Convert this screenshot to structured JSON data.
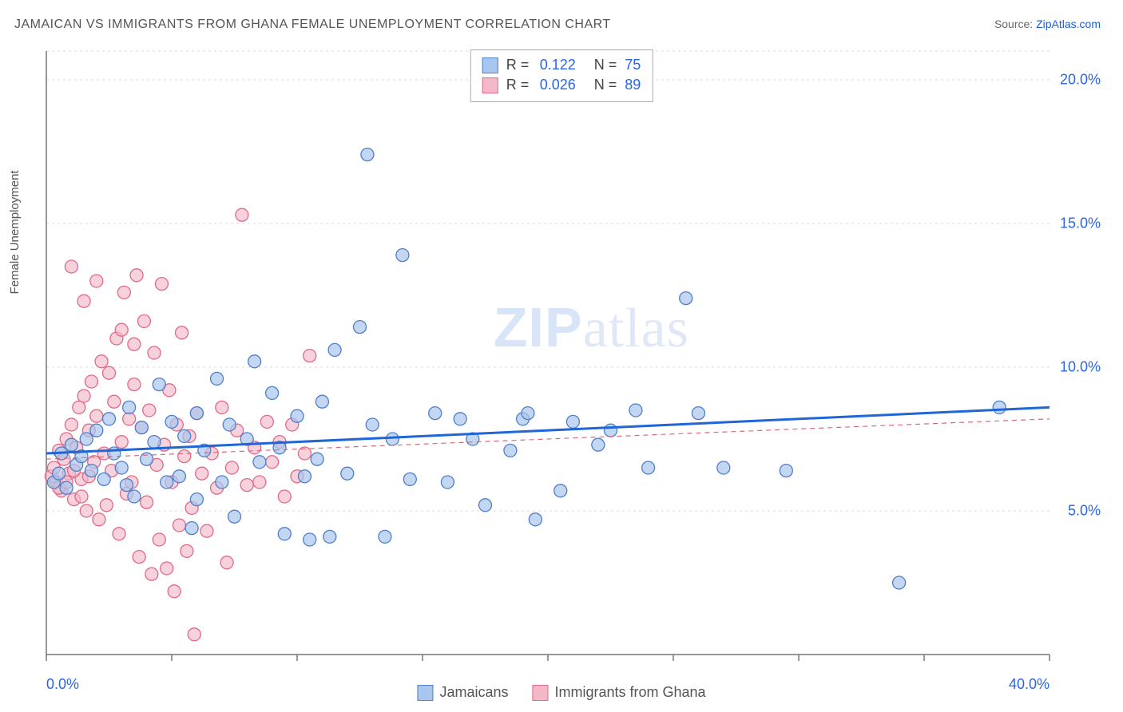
{
  "title": "JAMAICAN VS IMMIGRANTS FROM GHANA FEMALE UNEMPLOYMENT CORRELATION CHART",
  "source": {
    "label": "Source: ",
    "site": "ZipAtlas.com"
  },
  "ylabel": "Female Unemployment",
  "watermark": {
    "zip": "ZIP",
    "atlas": "atlas"
  },
  "chart": {
    "type": "scatter",
    "background_color": "#ffffff",
    "grid_color": "#d9d9d9",
    "axis_color": "#777777",
    "xlim": [
      0,
      40
    ],
    "ylim": [
      0,
      21
    ],
    "xticks": [
      0,
      10,
      20,
      30,
      40
    ],
    "xtick_labels": [
      "0.0%",
      "",
      "",
      "",
      "40.0%"
    ],
    "yticks": [
      5,
      10,
      15,
      20
    ],
    "ytick_labels": [
      "5.0%",
      "10.0%",
      "15.0%",
      "20.0%"
    ],
    "xtick_marks": [
      0,
      5,
      10,
      15,
      20,
      25,
      30,
      35,
      40
    ],
    "marker_radius": 8,
    "marker_stroke_width": 1.3,
    "series": [
      {
        "name": "Jamaicans",
        "fill": "#a9c6ee",
        "stroke": "#4f7fc9",
        "fill_opacity": 0.7,
        "trend": {
          "y0": 7.0,
          "y1": 8.6,
          "color": "#1f66d6",
          "width": 3,
          "dash": "none"
        },
        "R": "0.122",
        "N": "75",
        "points": [
          [
            0.3,
            6.0
          ],
          [
            0.5,
            6.3
          ],
          [
            0.6,
            7.0
          ],
          [
            0.8,
            5.8
          ],
          [
            1.0,
            7.3
          ],
          [
            1.2,
            6.6
          ],
          [
            1.4,
            6.9
          ],
          [
            1.6,
            7.5
          ],
          [
            1.8,
            6.4
          ],
          [
            2.0,
            7.8
          ],
          [
            2.3,
            6.1
          ],
          [
            2.5,
            8.2
          ],
          [
            2.7,
            7.0
          ],
          [
            3.0,
            6.5
          ],
          [
            3.3,
            8.6
          ],
          [
            3.5,
            5.5
          ],
          [
            3.8,
            7.9
          ],
          [
            4.0,
            6.8
          ],
          [
            4.3,
            7.4
          ],
          [
            4.5,
            9.4
          ],
          [
            5.0,
            8.1
          ],
          [
            5.3,
            6.2
          ],
          [
            5.5,
            7.6
          ],
          [
            5.8,
            4.4
          ],
          [
            6.0,
            8.4
          ],
          [
            6.3,
            7.1
          ],
          [
            6.8,
            9.6
          ],
          [
            7.0,
            6.0
          ],
          [
            7.3,
            8.0
          ],
          [
            7.5,
            4.8
          ],
          [
            8.0,
            7.5
          ],
          [
            8.3,
            10.2
          ],
          [
            8.5,
            6.7
          ],
          [
            9.0,
            9.1
          ],
          [
            9.3,
            7.2
          ],
          [
            9.5,
            4.2
          ],
          [
            10.0,
            8.3
          ],
          [
            10.3,
            6.2
          ],
          [
            10.5,
            4.0
          ],
          [
            11.0,
            8.8
          ],
          [
            11.3,
            4.1
          ],
          [
            11.5,
            10.6
          ],
          [
            12.0,
            6.3
          ],
          [
            12.5,
            11.4
          ],
          [
            12.8,
            17.4
          ],
          [
            13.0,
            8.0
          ],
          [
            13.5,
            4.1
          ],
          [
            13.8,
            7.5
          ],
          [
            14.2,
            13.9
          ],
          [
            14.5,
            6.1
          ],
          [
            15.5,
            8.4
          ],
          [
            16.0,
            6.0
          ],
          [
            16.5,
            8.2
          ],
          [
            17.0,
            7.5
          ],
          [
            17.5,
            5.2
          ],
          [
            18.5,
            7.1
          ],
          [
            19.0,
            8.2
          ],
          [
            19.2,
            8.4
          ],
          [
            19.5,
            4.7
          ],
          [
            20.5,
            5.7
          ],
          [
            21.0,
            8.1
          ],
          [
            22.0,
            7.3
          ],
          [
            22.5,
            7.8
          ],
          [
            23.5,
            8.5
          ],
          [
            24.0,
            6.5
          ],
          [
            25.5,
            12.4
          ],
          [
            26.0,
            8.4
          ],
          [
            27.0,
            6.5
          ],
          [
            29.5,
            6.4
          ],
          [
            34.0,
            2.5
          ],
          [
            38.0,
            8.6
          ],
          [
            10.8,
            6.8
          ],
          [
            6.0,
            5.4
          ],
          [
            4.8,
            6.0
          ],
          [
            3.2,
            5.9
          ]
        ]
      },
      {
        "name": "Immigrants from Ghana",
        "fill": "#f3b9c9",
        "stroke": "#e06a88",
        "fill_opacity": 0.65,
        "trend": {
          "y0": 6.8,
          "y1": 8.2,
          "color": "#d66a7d",
          "width": 1.2,
          "dash": "6,5"
        },
        "R": "0.026",
        "N": "89",
        "points": [
          [
            0.2,
            6.2
          ],
          [
            0.3,
            6.5
          ],
          [
            0.4,
            6.0
          ],
          [
            0.5,
            7.1
          ],
          [
            0.6,
            5.7
          ],
          [
            0.7,
            6.8
          ],
          [
            0.8,
            7.5
          ],
          [
            0.9,
            6.3
          ],
          [
            1.0,
            8.0
          ],
          [
            1.1,
            5.4
          ],
          [
            1.2,
            7.2
          ],
          [
            1.3,
            8.6
          ],
          [
            1.4,
            6.1
          ],
          [
            1.5,
            9.0
          ],
          [
            1.6,
            5.0
          ],
          [
            1.7,
            7.8
          ],
          [
            1.8,
            9.5
          ],
          [
            1.9,
            6.7
          ],
          [
            2.0,
            8.3
          ],
          [
            2.1,
            4.7
          ],
          [
            2.2,
            10.2
          ],
          [
            2.3,
            7.0
          ],
          [
            2.4,
            5.2
          ],
          [
            2.5,
            9.8
          ],
          [
            2.6,
            6.4
          ],
          [
            2.7,
            8.8
          ],
          [
            2.8,
            11.0
          ],
          [
            2.9,
            4.2
          ],
          [
            3.0,
            7.4
          ],
          [
            3.1,
            12.6
          ],
          [
            3.2,
            5.6
          ],
          [
            3.3,
            8.2
          ],
          [
            3.4,
            6.0
          ],
          [
            3.5,
            9.4
          ],
          [
            3.6,
            13.2
          ],
          [
            3.7,
            3.4
          ],
          [
            3.8,
            7.9
          ],
          [
            3.9,
            11.6
          ],
          [
            4.0,
            5.3
          ],
          [
            4.1,
            8.5
          ],
          [
            4.2,
            2.8
          ],
          [
            4.3,
            10.5
          ],
          [
            4.4,
            6.6
          ],
          [
            4.5,
            4.0
          ],
          [
            4.6,
            12.9
          ],
          [
            4.7,
            7.3
          ],
          [
            4.8,
            3.0
          ],
          [
            4.9,
            9.2
          ],
          [
            5.0,
            6.0
          ],
          [
            5.1,
            2.2
          ],
          [
            5.2,
            8.0
          ],
          [
            5.3,
            4.5
          ],
          [
            5.4,
            11.2
          ],
          [
            5.5,
            6.9
          ],
          [
            5.6,
            3.6
          ],
          [
            5.7,
            7.6
          ],
          [
            5.8,
            5.1
          ],
          [
            5.9,
            0.7
          ],
          [
            6.0,
            8.4
          ],
          [
            6.2,
            6.3
          ],
          [
            6.4,
            4.3
          ],
          [
            6.6,
            7.0
          ],
          [
            6.8,
            5.8
          ],
          [
            7.0,
            8.6
          ],
          [
            7.2,
            3.2
          ],
          [
            7.4,
            6.5
          ],
          [
            7.6,
            7.8
          ],
          [
            7.8,
            15.3
          ],
          [
            8.0,
            5.9
          ],
          [
            8.3,
            7.2
          ],
          [
            8.5,
            6.0
          ],
          [
            8.8,
            8.1
          ],
          [
            9.0,
            6.7
          ],
          [
            9.3,
            7.4
          ],
          [
            9.5,
            5.5
          ],
          [
            9.8,
            8.0
          ],
          [
            10.0,
            6.2
          ],
          [
            10.3,
            7.0
          ],
          [
            10.5,
            10.4
          ],
          [
            1.0,
            13.5
          ],
          [
            1.5,
            12.3
          ],
          [
            2.0,
            13.0
          ],
          [
            3.0,
            11.3
          ],
          [
            3.5,
            10.8
          ],
          [
            0.5,
            5.8
          ],
          [
            0.8,
            6.0
          ],
          [
            1.1,
            6.4
          ],
          [
            1.4,
            5.5
          ],
          [
            1.7,
            6.2
          ]
        ]
      }
    ]
  },
  "legend": {
    "series1_label": "Jamaicans",
    "series2_label": "Immigrants from Ghana"
  },
  "stats_labels": {
    "R": "R =",
    "N": "N ="
  }
}
